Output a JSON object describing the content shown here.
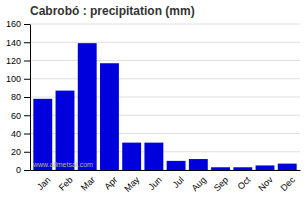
{
  "chart_data": {
    "type": "bar",
    "title": "Cabrobó : precipitation (mm)",
    "categories": [
      "Jan",
      "Feb",
      "Mar",
      "Apr",
      "May",
      "Jun",
      "Jul",
      "Aug",
      "Sep",
      "Oct",
      "Nov",
      "Dec"
    ],
    "values": [
      78,
      87,
      139,
      117,
      30,
      30,
      10,
      12,
      3,
      3,
      5,
      7
    ],
    "color": "#0000dd",
    "ylim": [
      0,
      160
    ],
    "yticks": [
      0,
      20,
      40,
      60,
      80,
      100,
      120,
      140,
      160
    ],
    "grid": true,
    "annotations": [
      "www.allmetsat.com"
    ]
  }
}
